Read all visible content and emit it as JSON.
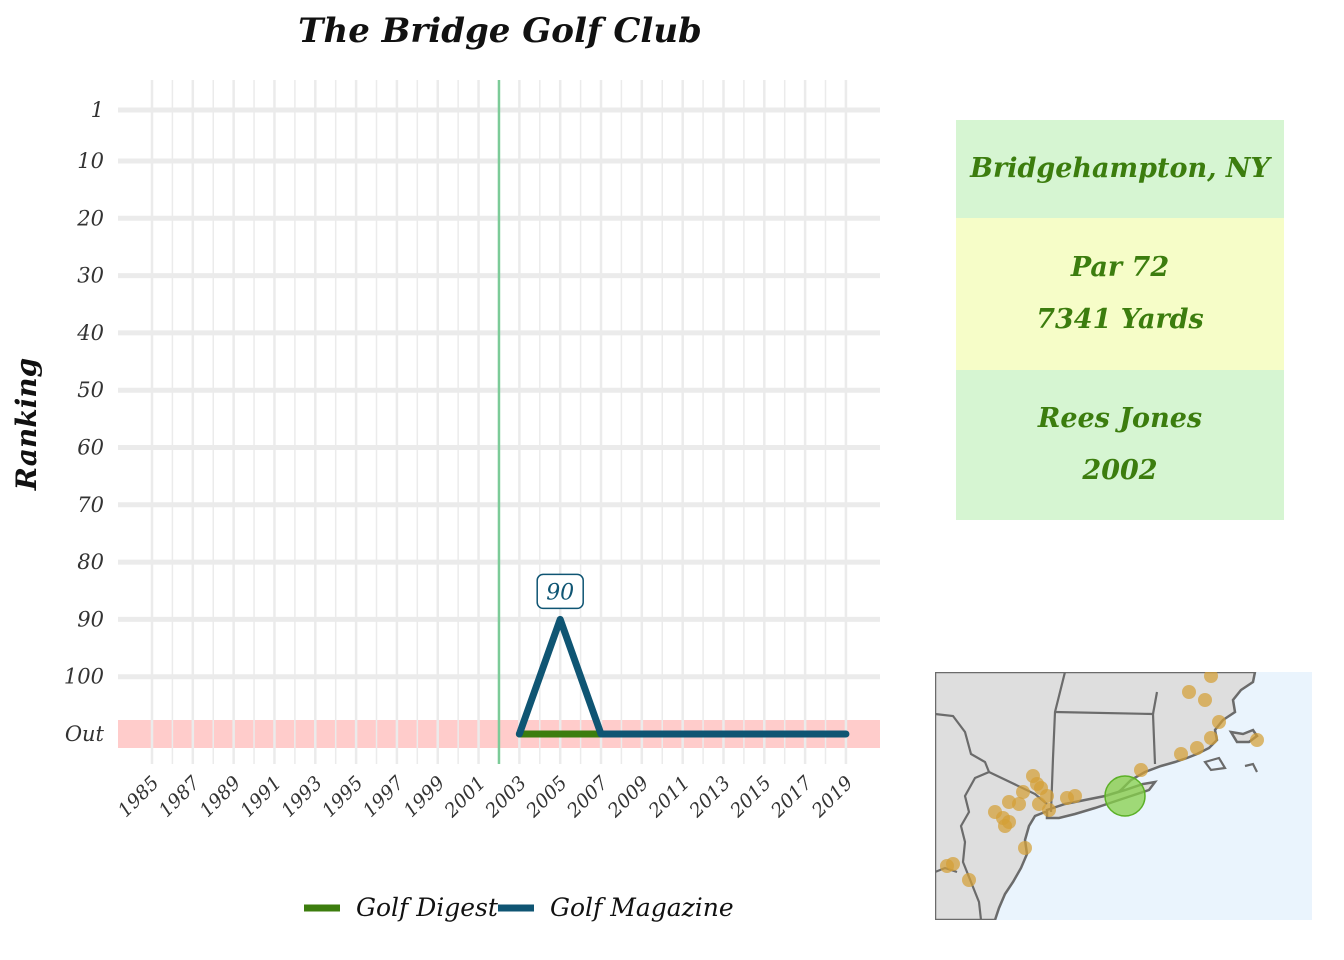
{
  "page": {
    "title": "The Bridge Golf Club"
  },
  "info": {
    "location": "Bridgehampton, NY",
    "par": "Par 72",
    "yards": "7341 Yards",
    "architect": "Rees Jones",
    "year": "2002"
  },
  "colors": {
    "golf_digest": "#3c7d0e",
    "golf_magazine": "#0f5573",
    "opened_line": "#7ccb98",
    "out_band": "#ffcccb",
    "panel_green": "#d6f5d2",
    "panel_yellow": "#f6fdc8",
    "panel_text": "#3c7d0e",
    "map_land": "#dedede",
    "map_water": "#eaf4fd",
    "map_course_dots": "#d4a036",
    "map_highlight": "#86d04a"
  },
  "chart_data": {
    "type": "line",
    "title": "The Bridge Golf Club",
    "xlabel": "",
    "ylabel": "Ranking",
    "x_ticks": [
      "1985",
      "1987",
      "1989",
      "1991",
      "1993",
      "1995",
      "1997",
      "1999",
      "2001",
      "2003",
      "2005",
      "2007",
      "2009",
      "2011",
      "2013",
      "2015",
      "2017",
      "2019"
    ],
    "y_ticks": [
      "1",
      "10",
      "20",
      "30",
      "40",
      "50",
      "60",
      "70",
      "80",
      "90",
      "100",
      "Out"
    ],
    "xlim": [
      1984,
      2020
    ],
    "ylim": [
      1,
      110
    ],
    "out_rank_value": 110,
    "opened_year": 2002,
    "series": [
      {
        "name": "Golf Digest",
        "color": "#3c7d0e",
        "points": [
          {
            "x": 2003,
            "y": "Out"
          },
          {
            "x": 2005,
            "y": "Out"
          },
          {
            "x": 2007,
            "y": "Out"
          }
        ]
      },
      {
        "name": "Golf Magazine",
        "color": "#0f5573",
        "points": [
          {
            "x": 2003,
            "y": "Out"
          },
          {
            "x": 2005,
            "y": 90
          },
          {
            "x": 2007,
            "y": "Out"
          },
          {
            "x": 2009,
            "y": "Out"
          },
          {
            "x": 2011,
            "y": "Out"
          },
          {
            "x": 2013,
            "y": "Out"
          },
          {
            "x": 2015,
            "y": "Out"
          },
          {
            "x": 2017,
            "y": "Out"
          },
          {
            "x": 2019,
            "y": "Out"
          }
        ]
      }
    ],
    "annotations": [
      {
        "x": 2005,
        "y": 90,
        "text": "90",
        "series": "Golf Magazine"
      }
    ],
    "legend": {
      "position": "bottom",
      "entries": [
        "Golf Digest",
        "Golf Magazine"
      ]
    },
    "grid": true
  }
}
